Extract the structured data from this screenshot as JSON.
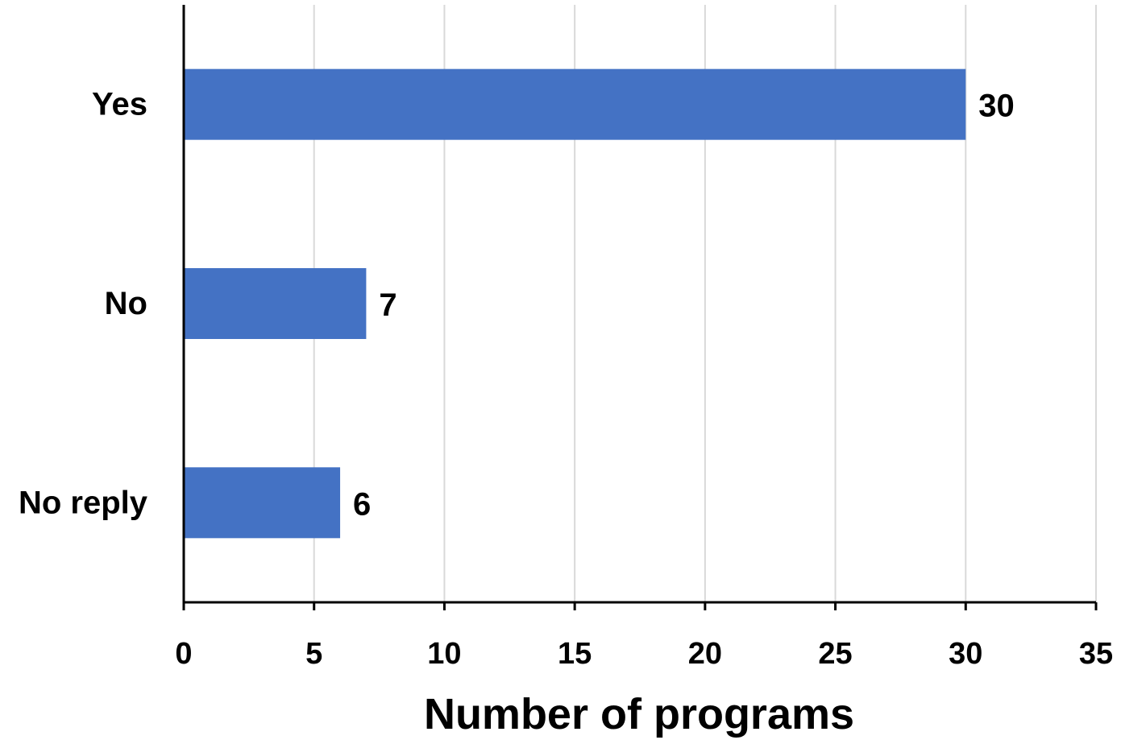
{
  "chart_data": {
    "type": "bar",
    "orientation": "horizontal",
    "categories": [
      "Yes",
      "No",
      "No reply"
    ],
    "values": [
      30,
      7,
      6
    ],
    "title": "",
    "xlabel": "Number of programs",
    "ylabel": "",
    "xlim": [
      0,
      35
    ],
    "xticks": [
      0,
      5,
      10,
      15,
      20,
      25,
      30,
      35
    ],
    "grid": "vertical",
    "legend": "none",
    "bar_color": "#4472c4"
  }
}
